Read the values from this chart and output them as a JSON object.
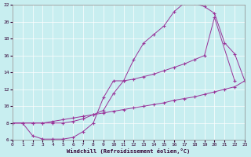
{
  "xlabel": "Windchill (Refroidissement éolien,°C)",
  "xlim": [
    0,
    23
  ],
  "ylim": [
    6,
    22
  ],
  "xticks": [
    0,
    1,
    2,
    3,
    4,
    5,
    6,
    7,
    8,
    9,
    10,
    11,
    12,
    13,
    14,
    15,
    16,
    17,
    18,
    19,
    20,
    21,
    22,
    23
  ],
  "yticks": [
    6,
    8,
    10,
    12,
    14,
    16,
    18,
    20,
    22
  ],
  "bg_color": "#c8eef0",
  "line_color": "#993399",
  "line1_x": [
    0,
    1,
    2,
    3,
    4,
    5,
    6,
    7,
    8,
    9,
    10,
    11,
    12,
    13,
    14,
    15,
    16,
    17,
    18,
    19,
    20,
    21,
    22,
    23
  ],
  "line1_y": [
    8.0,
    8.0,
    8.0,
    8.0,
    8.2,
    8.4,
    8.6,
    8.8,
    9.0,
    9.2,
    9.4,
    9.6,
    9.8,
    10.0,
    10.2,
    10.4,
    10.7,
    10.9,
    11.1,
    11.4,
    11.7,
    12.0,
    12.3,
    13.0
  ],
  "line2_x": [
    0,
    1,
    2,
    3,
    4,
    5,
    6,
    7,
    8,
    9,
    10,
    11,
    12,
    13,
    14,
    15,
    16,
    17,
    18,
    19,
    20,
    22
  ],
  "line2_y": [
    8.0,
    8.0,
    6.5,
    6.1,
    6.1,
    6.1,
    6.3,
    7.0,
    8.0,
    11.0,
    13.0,
    13.0,
    13.2,
    13.5,
    13.8,
    14.2,
    14.6,
    15.0,
    15.5,
    16.0,
    20.5,
    13.0
  ],
  "line3_x": [
    0,
    2,
    3,
    4,
    5,
    6,
    7,
    8,
    9,
    10,
    11,
    12,
    13,
    14,
    15,
    16,
    17,
    18,
    19,
    20,
    21,
    22,
    23
  ],
  "line3_y": [
    8.0,
    8.0,
    8.0,
    8.0,
    8.0,
    8.2,
    8.5,
    9.0,
    9.5,
    11.5,
    13.0,
    15.5,
    17.5,
    18.5,
    19.5,
    21.2,
    22.2,
    22.2,
    21.8,
    21.0,
    17.5,
    16.2,
    13.0
  ]
}
